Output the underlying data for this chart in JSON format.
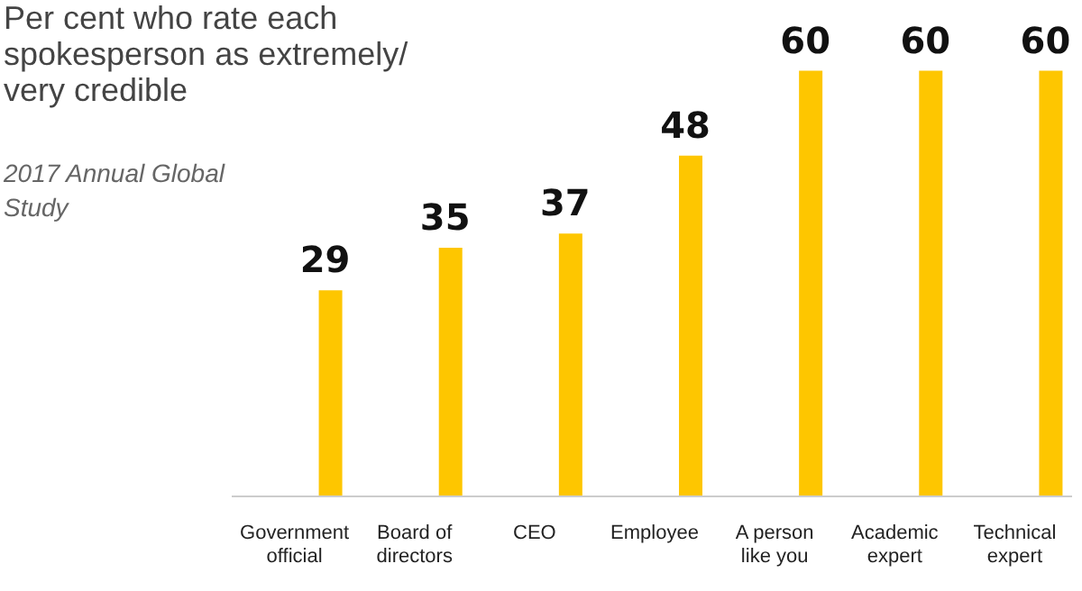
{
  "chart_data": {
    "type": "bar",
    "title": "Per cent who rate each spokesperson as extremely/ very credible",
    "annotations": [
      "2017 Annual Global Study"
    ],
    "categories": [
      "Government\nofficial",
      "Board of\ndirectors",
      "CEO",
      "Employee",
      "A person\nlike you",
      "Academic\nexpert",
      "Technical\nexpert"
    ],
    "values": [
      29,
      35,
      37,
      48,
      60,
      60,
      60
    ],
    "color": "#fec600",
    "ylim": [
      0,
      70
    ],
    "data_labels": true,
    "tick_labels": "x",
    "grid": false
  }
}
